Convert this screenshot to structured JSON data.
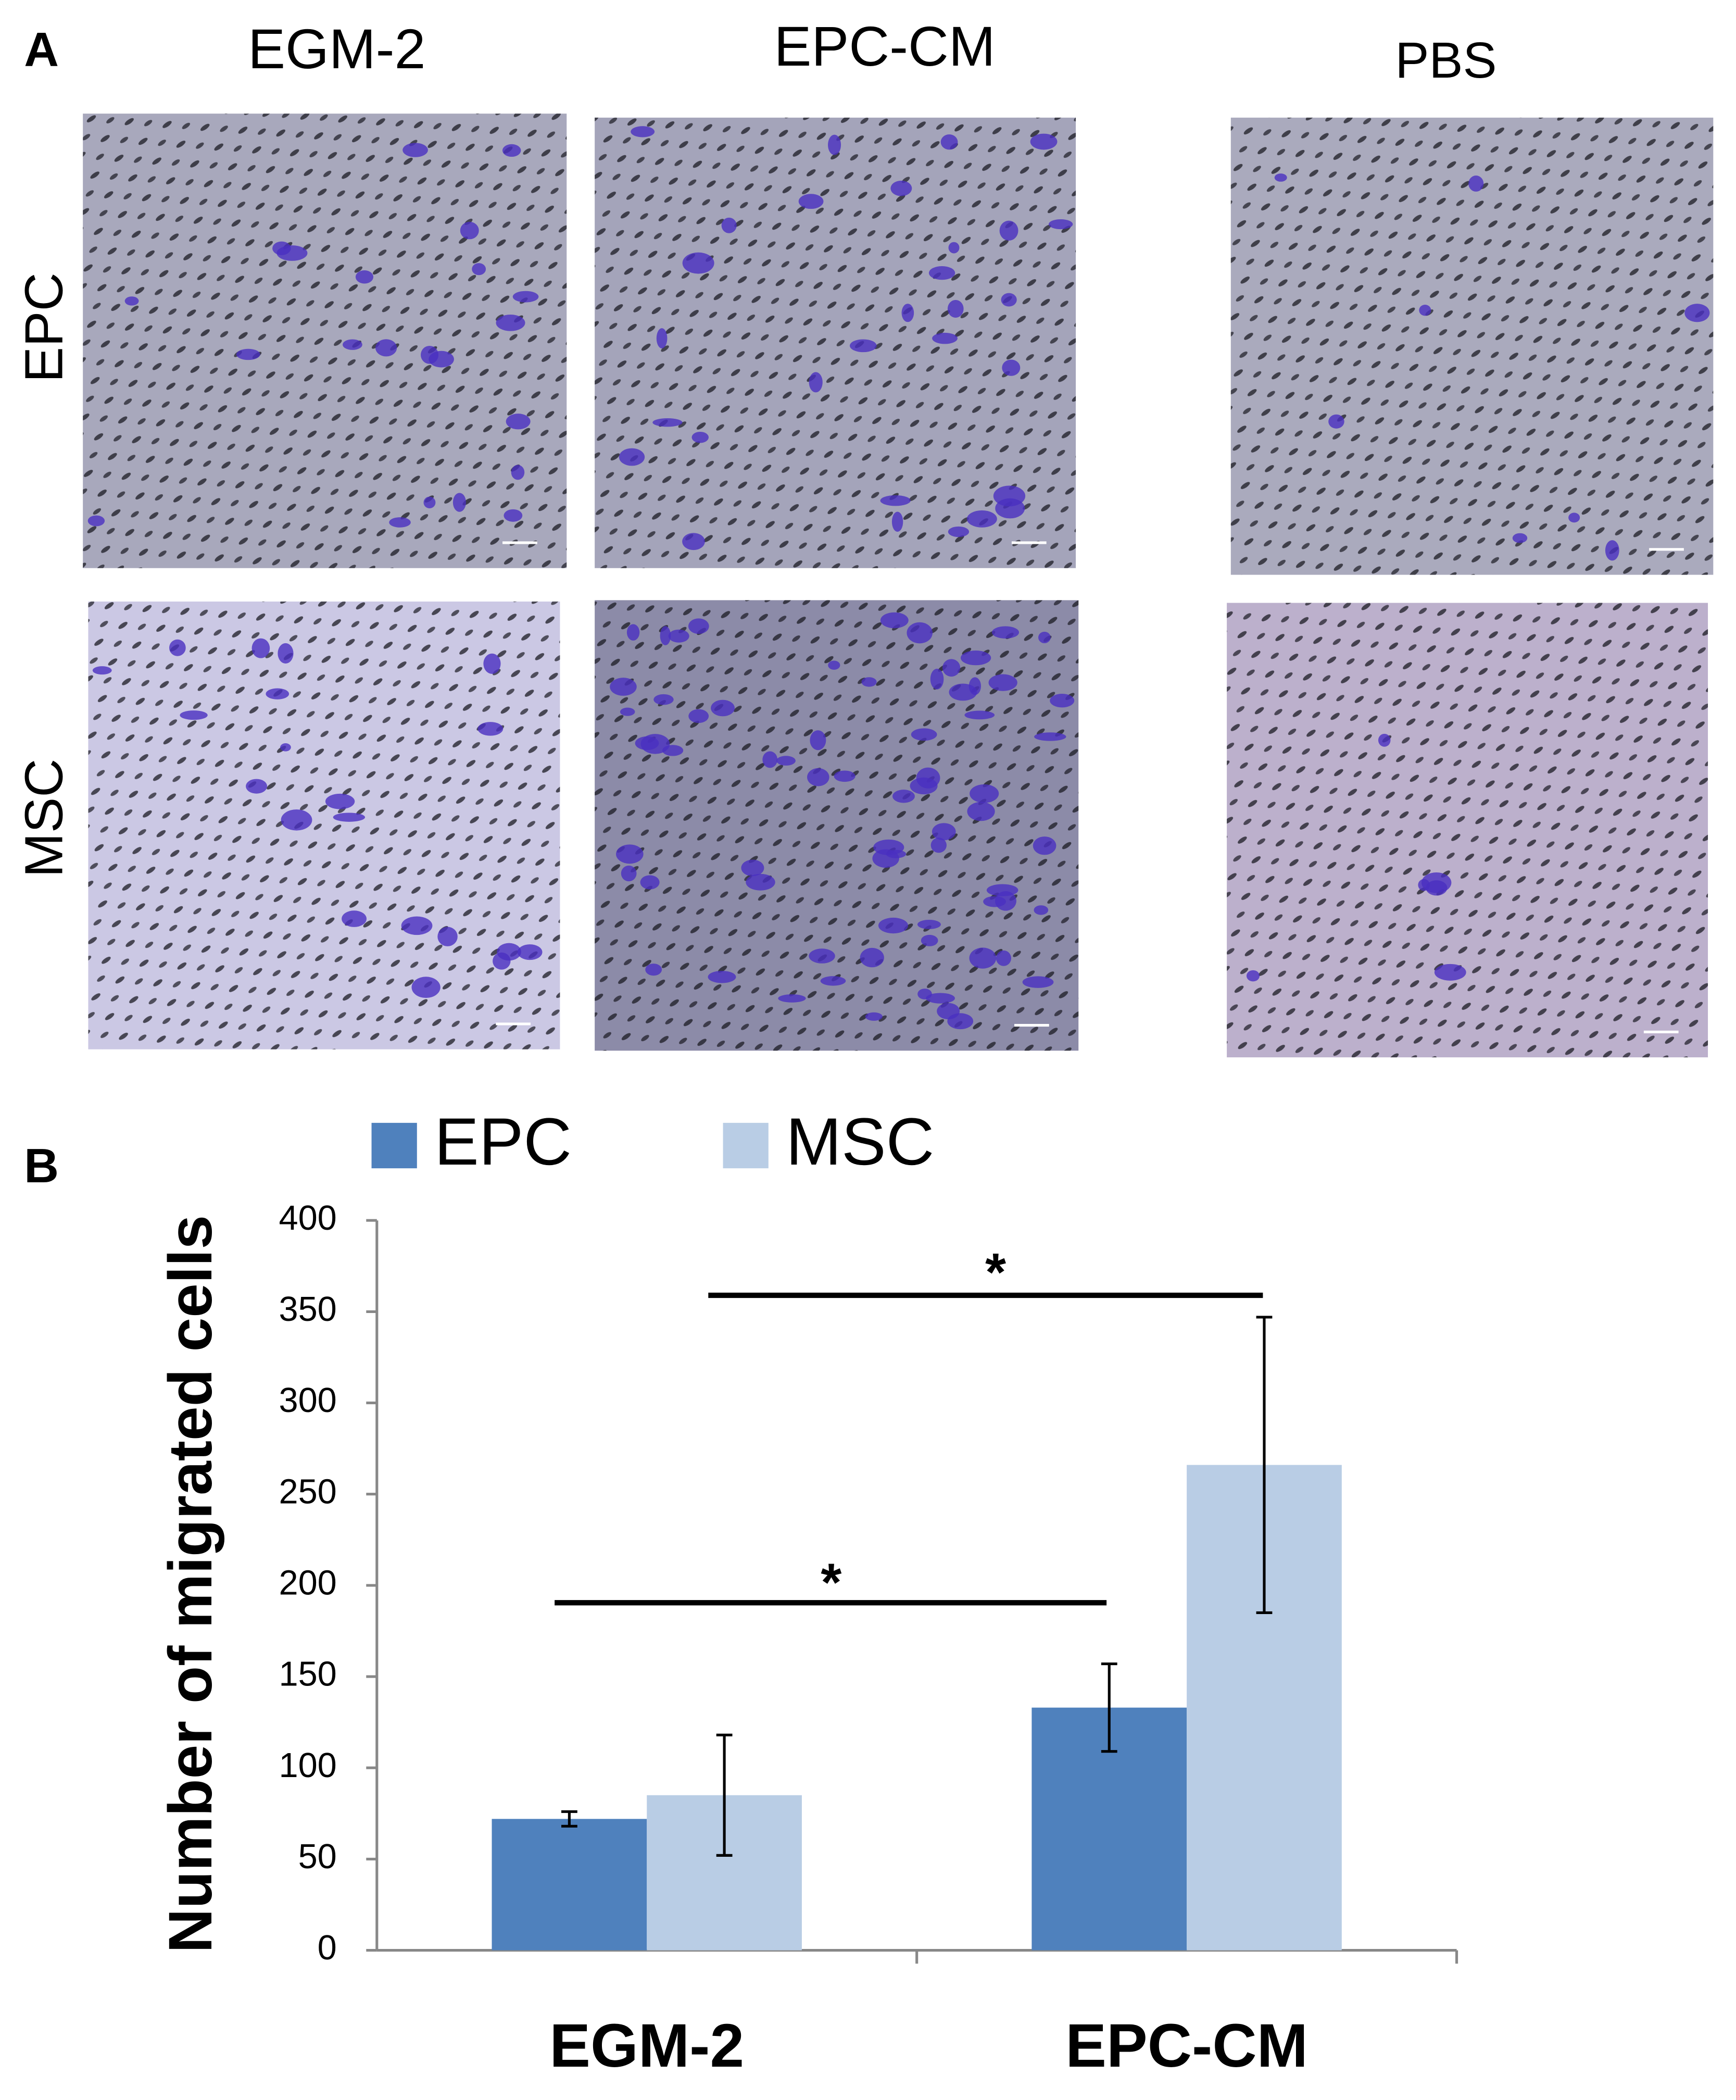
{
  "panel_a": {
    "label": "A",
    "columns": [
      "EGM-2",
      "EPC-CM",
      "PBS"
    ],
    "rows": [
      "EPC",
      "MSC"
    ]
  },
  "chart_data": {
    "type": "bar",
    "panel_label": "B",
    "ylabel": "Number of migrated cells",
    "categories": [
      "EGM-2",
      "EPC-CM"
    ],
    "series": [
      {
        "name": "EPC",
        "color": "#4f81bd",
        "values": [
          72,
          133
        ],
        "errors": [
          4,
          24
        ]
      },
      {
        "name": "MSC",
        "color": "#b9cde5",
        "values": [
          85,
          266
        ],
        "errors": [
          33,
          81
        ]
      }
    ],
    "ylim": [
      0,
      400
    ],
    "yticks": [
      0,
      50,
      100,
      150,
      200,
      250,
      300,
      350,
      400
    ],
    "annotations": [
      "*",
      "*"
    ],
    "legend": "top"
  }
}
